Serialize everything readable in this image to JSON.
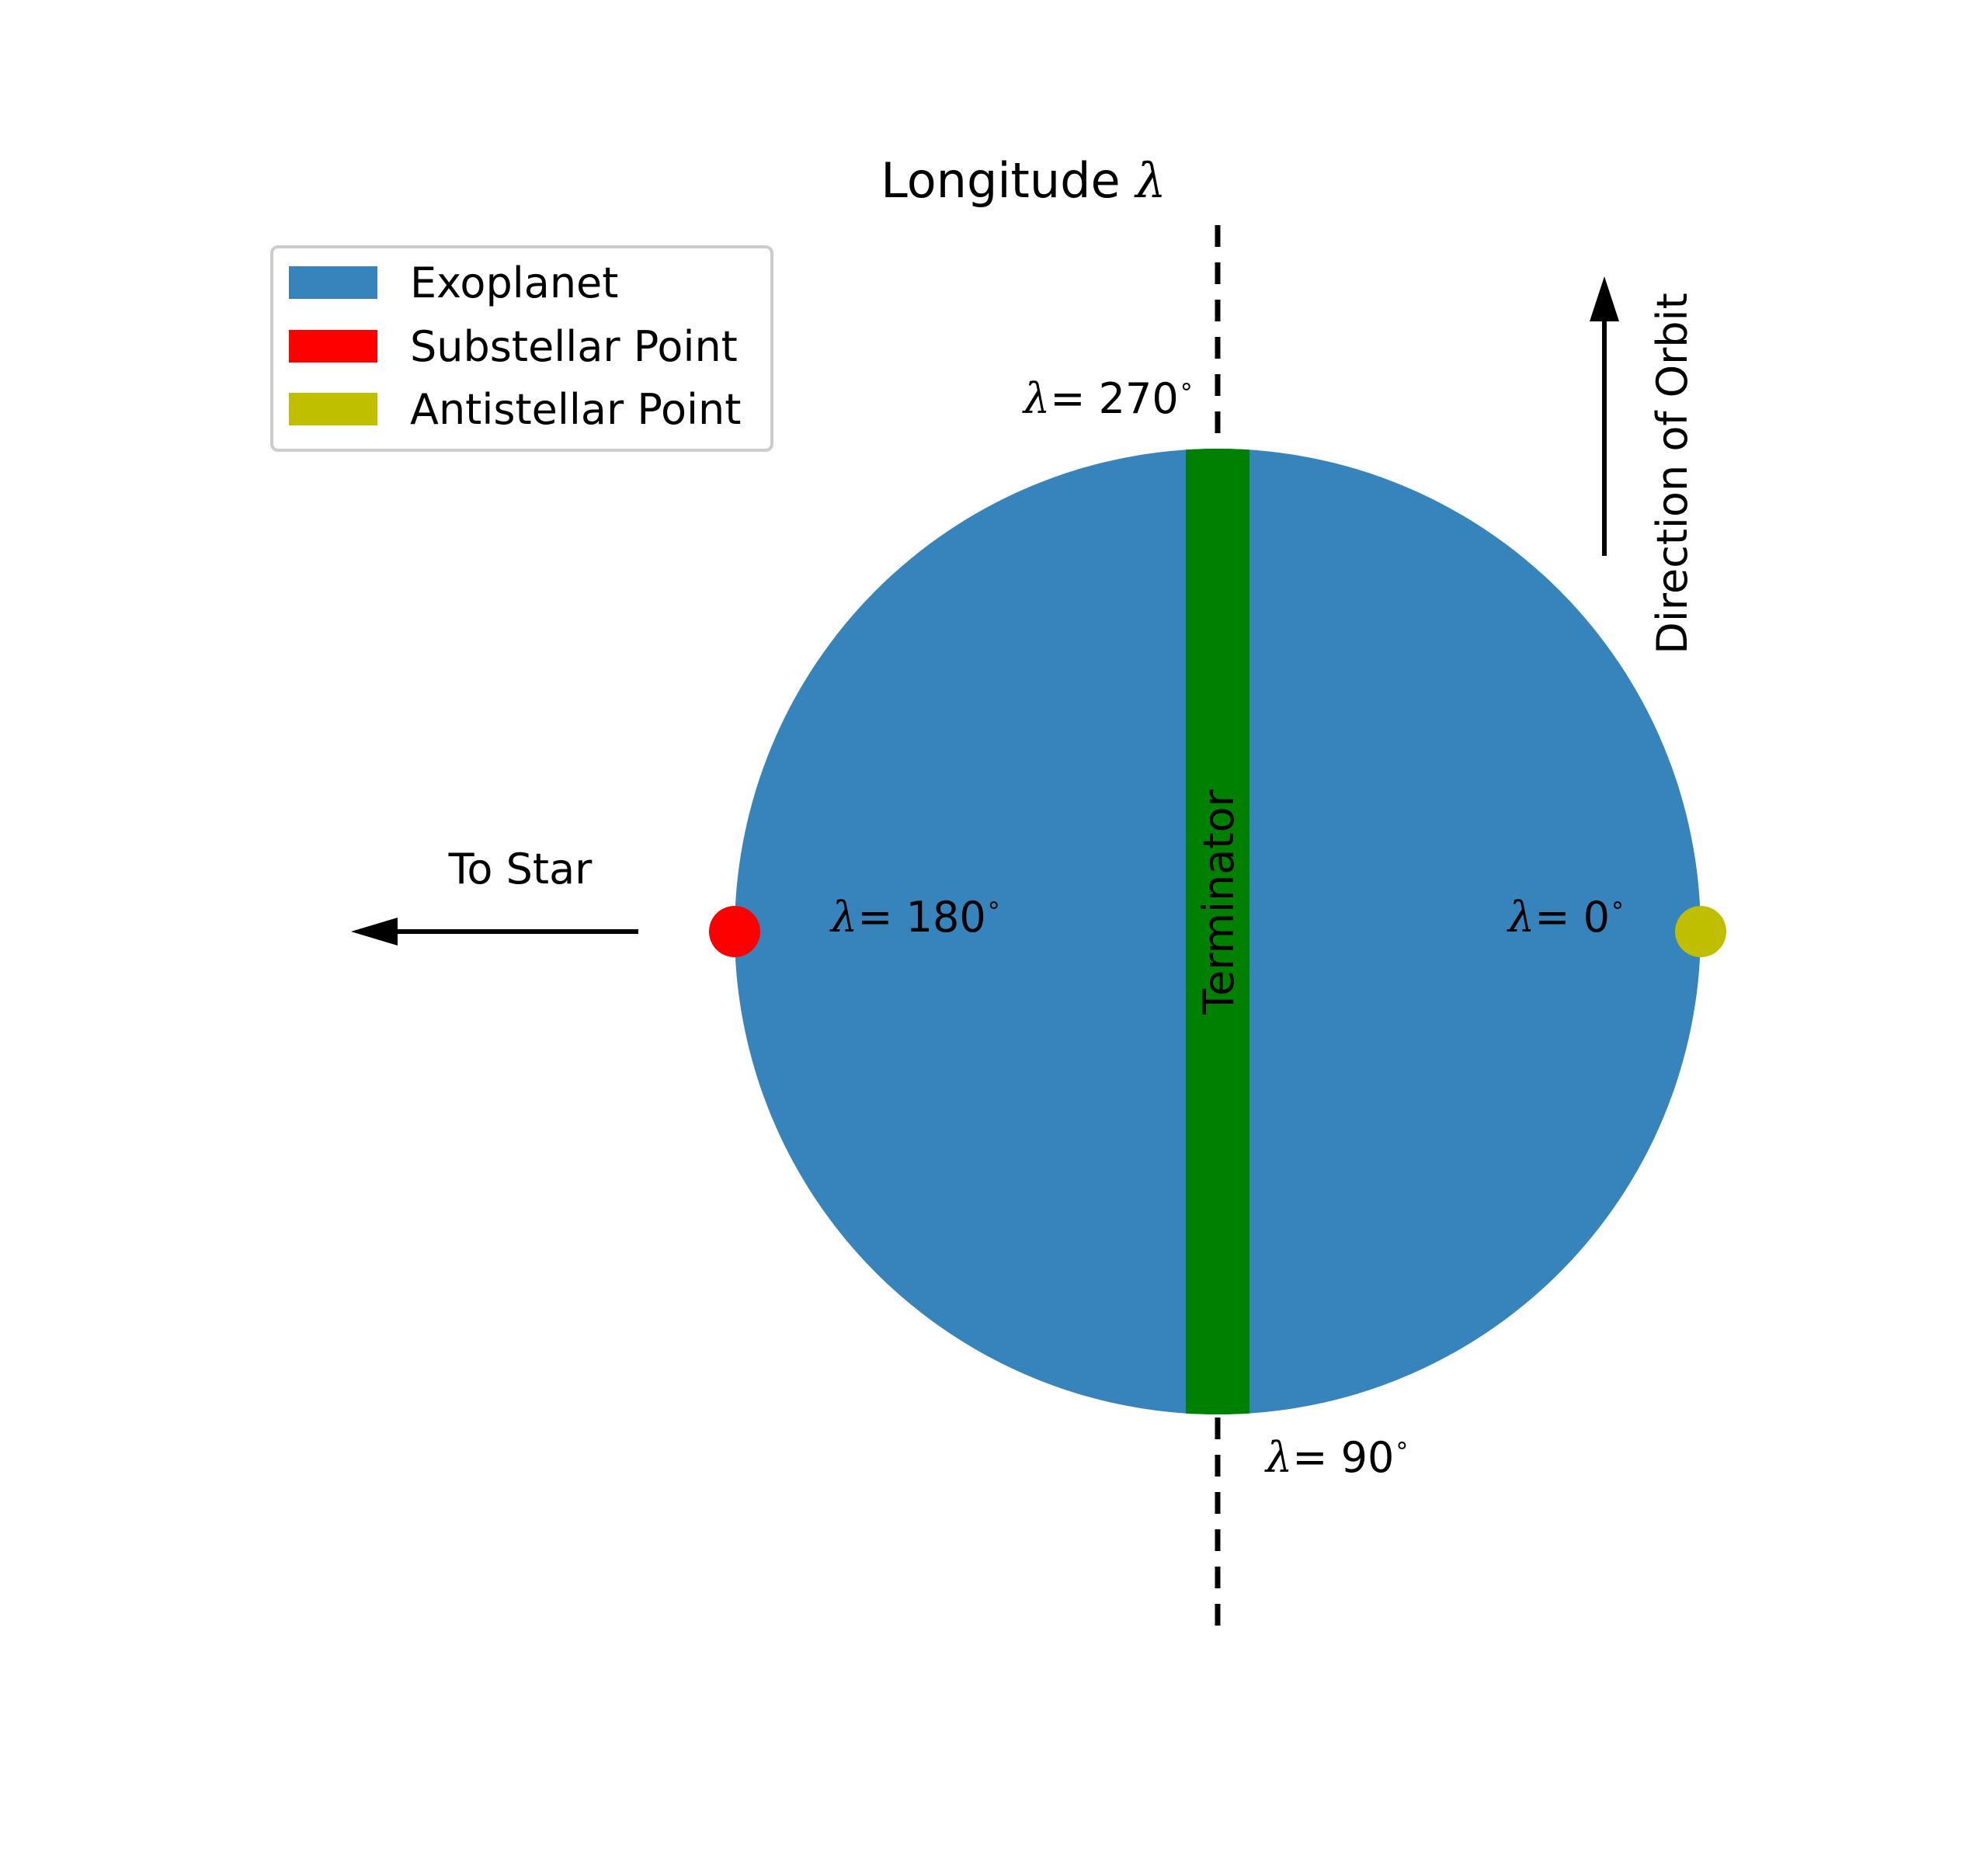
{
  "title": {
    "text": "Longitude",
    "symbol": "λ"
  },
  "legend": {
    "items": [
      {
        "label": "Exoplanet",
        "color": "#3784BC"
      },
      {
        "label": "Substellar Point",
        "color": "#FF0000"
      },
      {
        "label": "Antistellar Point",
        "color": "#BFBF00"
      }
    ]
  },
  "planet": {
    "color": "#3784BC"
  },
  "terminator": {
    "label": "Terminator",
    "color": "#008000"
  },
  "substellar_point": {
    "color": "#FF0000"
  },
  "antistellar_point": {
    "color": "#BFBF00"
  },
  "longitude_labels": {
    "top": {
      "symbol": "λ",
      "value": "= 270",
      "unit": "∘"
    },
    "bottom": {
      "symbol": "λ",
      "value": "= 90",
      "unit": "∘"
    },
    "left": {
      "symbol": "λ",
      "value": "= 180",
      "unit": "∘"
    },
    "right": {
      "symbol": "λ",
      "value": "= 0",
      "unit": "∘"
    }
  },
  "to_star": {
    "label": "To Star"
  },
  "orbit": {
    "label": "Direction of Orbit"
  }
}
